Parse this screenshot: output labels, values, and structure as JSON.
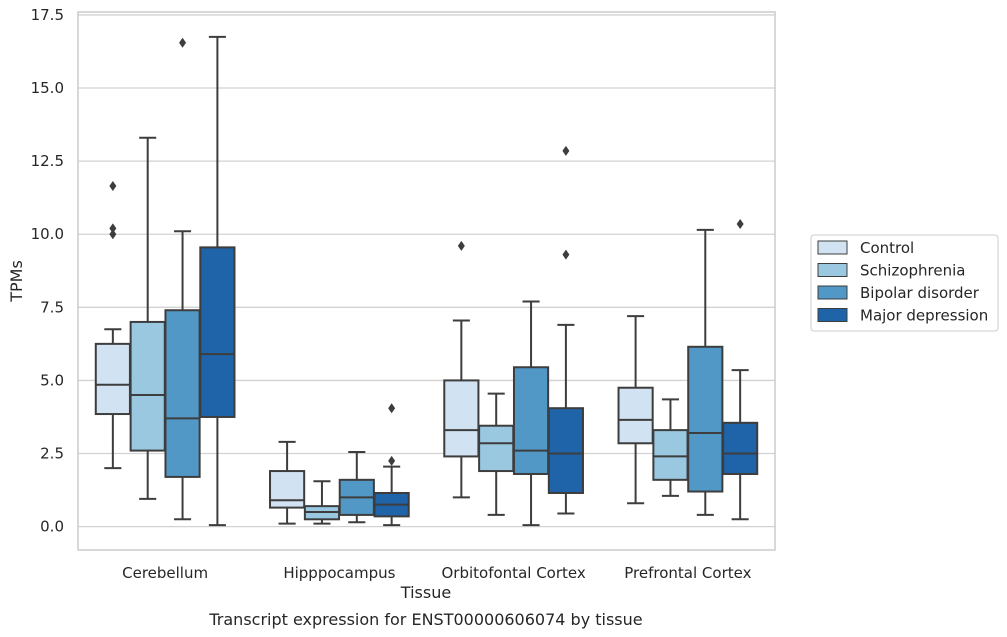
{
  "caption": "Transcript expression for ENST00000606074 by tissue",
  "chart_data": {
    "type": "box",
    "title": "",
    "xlabel": "Tissue",
    "ylabel": "TPMs",
    "ylim": [
      -0.8,
      17.6
    ],
    "yticks": [
      "0.0",
      "2.5",
      "5.0",
      "7.5",
      "10.0",
      "12.5",
      "15.0",
      "17.5"
    ],
    "ytick_values": [
      0,
      2.5,
      5,
      7.5,
      10,
      12.5,
      15,
      17.5
    ],
    "grid": "horizontal",
    "legend_position": "right",
    "categories": [
      "Cerebellum",
      "Hipppocampus",
      "Orbitofontal Cortex",
      "Prefrontal Cortex"
    ],
    "series": [
      {
        "name": "Control",
        "color": "#d1e2f2",
        "boxes": [
          {
            "whislo": 2.0,
            "q1": 3.85,
            "med": 4.85,
            "q3": 6.25,
            "whishi": 6.75,
            "fliers": [
              10.0,
              10.2,
              11.65
            ]
          },
          {
            "whislo": 0.1,
            "q1": 0.65,
            "med": 0.9,
            "q3": 1.9,
            "whishi": 2.9,
            "fliers": []
          },
          {
            "whislo": 1.0,
            "q1": 2.4,
            "med": 3.3,
            "q3": 5.0,
            "whishi": 7.05,
            "fliers": [
              9.6
            ]
          },
          {
            "whislo": 0.8,
            "q1": 2.85,
            "med": 3.65,
            "q3": 4.75,
            "whishi": 7.2,
            "fliers": []
          }
        ]
      },
      {
        "name": "Schizophrenia",
        "color": "#9ac8e1",
        "boxes": [
          {
            "whislo": 0.95,
            "q1": 2.6,
            "med": 4.5,
            "q3": 7.0,
            "whishi": 13.3,
            "fliers": []
          },
          {
            "whislo": 0.1,
            "q1": 0.25,
            "med": 0.5,
            "q3": 0.7,
            "whishi": 1.55,
            "fliers": []
          },
          {
            "whislo": 0.4,
            "q1": 1.9,
            "med": 2.85,
            "q3": 3.45,
            "whishi": 4.55,
            "fliers": []
          },
          {
            "whislo": 1.05,
            "q1": 1.6,
            "med": 2.4,
            "q3": 3.3,
            "whishi": 4.35,
            "fliers": []
          }
        ]
      },
      {
        "name": "Bipolar disorder",
        "color": "#5198c7",
        "boxes": [
          {
            "whislo": 0.25,
            "q1": 1.7,
            "med": 3.7,
            "q3": 7.4,
            "whishi": 10.1,
            "fliers": [
              16.55
            ]
          },
          {
            "whislo": 0.15,
            "q1": 0.4,
            "med": 1.0,
            "q3": 1.6,
            "whishi": 2.55,
            "fliers": []
          },
          {
            "whislo": 0.05,
            "q1": 1.8,
            "med": 2.6,
            "q3": 5.45,
            "whishi": 7.7,
            "fliers": []
          },
          {
            "whislo": 0.4,
            "q1": 1.2,
            "med": 3.2,
            "q3": 6.15,
            "whishi": 10.15,
            "fliers": []
          }
        ]
      },
      {
        "name": "Major depression",
        "color": "#1f63a8",
        "boxes": [
          {
            "whislo": 0.05,
            "q1": 3.75,
            "med": 5.9,
            "q3": 9.55,
            "whishi": 16.75,
            "fliers": []
          },
          {
            "whislo": 0.05,
            "q1": 0.35,
            "med": 0.75,
            "q3": 1.15,
            "whishi": 2.05,
            "fliers": [
              2.25,
              4.05
            ]
          },
          {
            "whislo": 0.45,
            "q1": 1.15,
            "med": 2.5,
            "q3": 4.05,
            "whishi": 6.9,
            "fliers": [
              9.3,
              12.85
            ]
          },
          {
            "whislo": 0.25,
            "q1": 1.8,
            "med": 2.5,
            "q3": 3.55,
            "whishi": 5.35,
            "fliers": [
              10.35
            ]
          }
        ]
      }
    ]
  }
}
